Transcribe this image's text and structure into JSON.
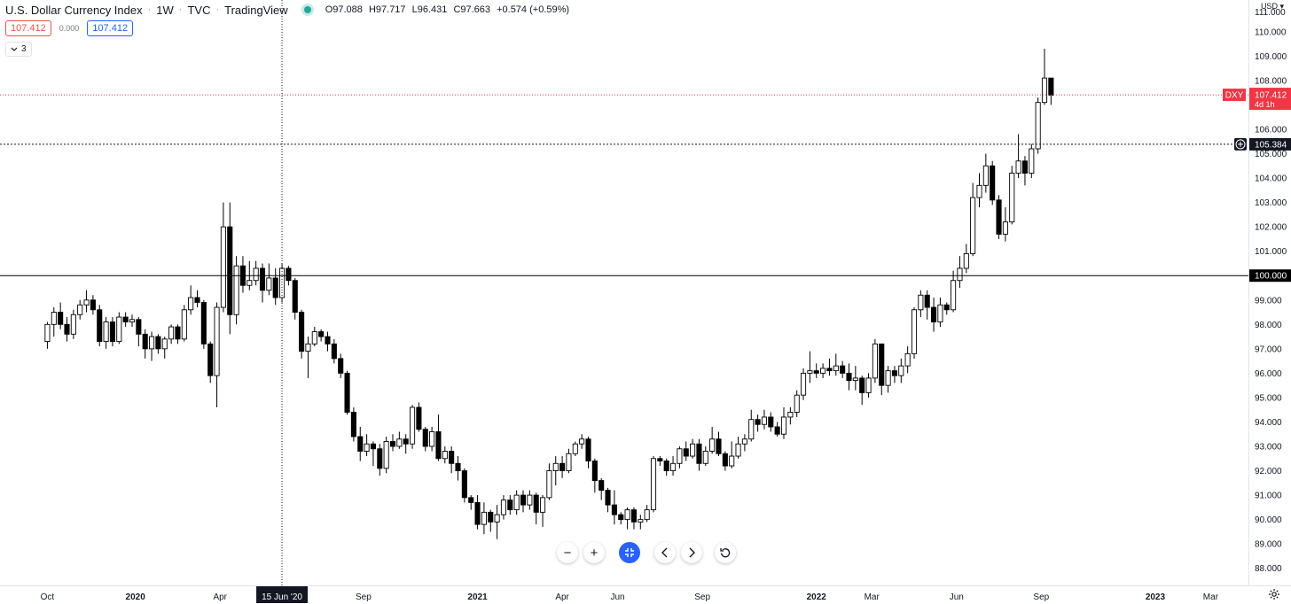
{
  "header": {
    "symbol_name": "U.S. Dollar Currency Index",
    "interval": "1W",
    "exchange": "TVC",
    "source": "TradingView",
    "ohlc": {
      "open": "O97.088",
      "high": "H97.717",
      "low": "L96.431",
      "close": "C97.663",
      "change": "+0.574 (+0.59%)"
    },
    "sell_price": "107.412",
    "spread": "0.000",
    "buy_price": "107.412",
    "indicators_count": "3"
  },
  "price_axis": {
    "currency": "USD",
    "top_label": "111.000"
  },
  "crosshair": {
    "date_label": "15 Jun '20",
    "price_label": "105.384",
    "price": 105.384
  },
  "last_price": {
    "symbol": "DXY",
    "price": "107.412",
    "countdown": "4d 1h",
    "value": 107.412
  },
  "horizontal_line": {
    "label": "100.000",
    "value": 100.0
  },
  "toolbar": {
    "zoom_out": "−",
    "zoom_in": "+"
  },
  "colors": {
    "up_body": "#ffffff",
    "down_body": "#000000",
    "wick": "#000000",
    "last_price": "#f23645",
    "crosshair": "#131722",
    "accent": "#2962ff"
  },
  "chart_data": {
    "type": "candlestick",
    "title": "U.S. Dollar Currency Index",
    "interval": "1W",
    "ylim": [
      87.3,
      111.3
    ],
    "y_ticks": [
      "110.000",
      "109.000",
      "108.000",
      "107.000",
      "106.000",
      "105.000",
      "104.000",
      "103.000",
      "102.000",
      "101.000",
      "99.000",
      "98.000",
      "97.000",
      "96.000",
      "95.000",
      "94.000",
      "93.000",
      "92.000",
      "91.000",
      "90.000",
      "89.000",
      "88.000"
    ],
    "y_tick_values": [
      110,
      109,
      108,
      107,
      106,
      105,
      104,
      103,
      102,
      101,
      99,
      98,
      97,
      96,
      95,
      94,
      93,
      92,
      91,
      90,
      89,
      88
    ],
    "x_ticks": [
      {
        "label": "Oct",
        "bar": 0,
        "bold": false
      },
      {
        "label": "2020",
        "bar": 13.5,
        "bold": true
      },
      {
        "label": "Apr",
        "bar": 26.5,
        "bold": false
      },
      {
        "label": "Sep",
        "bar": 48.5,
        "bold": false
      },
      {
        "label": "2021",
        "bar": 66,
        "bold": true
      },
      {
        "label": "Apr",
        "bar": 79,
        "bold": false
      },
      {
        "label": "Jun",
        "bar": 87.5,
        "bold": false
      },
      {
        "label": "Sep",
        "bar": 100.5,
        "bold": false
      },
      {
        "label": "2022",
        "bar": 118,
        "bold": true
      },
      {
        "label": "Mar",
        "bar": 126.5,
        "bold": false
      },
      {
        "label": "Jun",
        "bar": 139.5,
        "bold": false
      },
      {
        "label": "Sep",
        "bar": 152.5,
        "bold": false
      },
      {
        "label": "2023",
        "bar": 170,
        "bold": true
      },
      {
        "label": "Mar",
        "bar": 178.5,
        "bold": false
      }
    ],
    "start_bar": -7,
    "crosshair_bar": 36,
    "candles": [
      [
        97.3,
        98.0,
        97.0,
        98.1
      ],
      [
        98.0,
        98.5,
        97.5,
        98.7
      ],
      [
        98.5,
        98.0,
        97.8,
        98.9
      ],
      [
        98.0,
        97.6,
        97.3,
        98.3
      ],
      [
        97.6,
        98.4,
        97.4,
        98.6
      ],
      [
        98.4,
        98.8,
        98.2,
        99.0
      ],
      [
        98.8,
        99.0,
        98.5,
        99.4
      ],
      [
        99.0,
        98.6,
        98.4,
        99.2
      ],
      [
        98.6,
        97.3,
        97.1,
        98.8
      ],
      [
        97.3,
        98.1,
        97.0,
        98.3
      ],
      [
        98.1,
        97.3,
        97.1,
        98.3
      ],
      [
        97.3,
        98.3,
        97.2,
        98.5
      ],
      [
        98.3,
        98.1,
        97.9,
        98.5
      ],
      [
        98.1,
        98.2,
        97.9,
        98.4
      ],
      [
        98.2,
        97.6,
        97.1,
        98.3
      ],
      [
        97.6,
        97.0,
        96.6,
        97.8
      ],
      [
        97.0,
        97.5,
        96.5,
        97.7
      ],
      [
        97.5,
        97.0,
        96.8,
        97.6
      ],
      [
        97.0,
        97.4,
        96.6,
        97.5
      ],
      [
        97.4,
        97.9,
        97.2,
        98.0
      ],
      [
        97.9,
        97.4,
        97.2,
        98.0
      ],
      [
        97.4,
        98.6,
        97.3,
        98.8
      ],
      [
        98.6,
        99.1,
        98.4,
        99.6
      ],
      [
        99.1,
        98.9,
        98.7,
        99.4
      ],
      [
        98.9,
        97.2,
        97.0,
        99.0
      ],
      [
        97.2,
        95.9,
        95.6,
        97.3
      ],
      [
        95.9,
        98.7,
        94.6,
        98.9
      ],
      [
        98.7,
        102.0,
        98.5,
        103.0
      ],
      [
        102.0,
        98.4,
        97.6,
        103.0
      ],
      [
        98.4,
        100.4,
        98.0,
        100.8
      ],
      [
        100.4,
        99.6,
        99.3,
        100.8
      ],
      [
        99.6,
        99.8,
        99.4,
        100.6
      ],
      [
        99.8,
        100.3,
        99.6,
        100.6
      ],
      [
        100.3,
        99.4,
        98.9,
        100.5
      ],
      [
        99.4,
        99.9,
        99.2,
        100.5
      ],
      [
        99.9,
        99.1,
        98.8,
        100.3
      ],
      [
        99.1,
        100.3,
        98.9,
        100.5
      ],
      [
        100.3,
        99.8,
        99.6,
        100.4
      ],
      [
        99.8,
        98.5,
        98.2,
        99.9
      ],
      [
        98.5,
        96.9,
        96.6,
        98.6
      ],
      [
        96.9,
        97.2,
        95.8,
        97.5
      ],
      [
        97.2,
        97.7,
        97.1,
        97.9
      ],
      [
        97.7,
        97.5,
        97.3,
        97.8
      ],
      [
        97.5,
        97.2,
        96.9,
        97.7
      ],
      [
        97.2,
        96.6,
        96.4,
        97.4
      ],
      [
        96.6,
        96.0,
        95.8,
        96.8
      ],
      [
        96.0,
        94.4,
        94.3,
        96.1
      ],
      [
        94.4,
        93.4,
        93.2,
        94.6
      ],
      [
        93.4,
        92.8,
        92.4,
        93.8
      ],
      [
        92.8,
        93.1,
        92.6,
        93.5
      ],
      [
        93.1,
        92.9,
        92.2,
        93.2
      ],
      [
        92.9,
        92.1,
        91.8,
        93.1
      ],
      [
        92.1,
        93.2,
        91.9,
        93.4
      ],
      [
        93.2,
        93.0,
        92.8,
        93.5
      ],
      [
        93.0,
        93.3,
        92.9,
        93.6
      ],
      [
        93.3,
        93.1,
        92.7,
        93.5
      ],
      [
        93.1,
        94.6,
        92.9,
        94.7
      ],
      [
        94.6,
        93.7,
        93.6,
        94.8
      ],
      [
        93.7,
        93.0,
        92.8,
        93.8
      ],
      [
        93.0,
        93.6,
        92.8,
        93.8
      ],
      [
        93.6,
        92.5,
        92.4,
        94.3
      ],
      [
        92.5,
        92.8,
        92.3,
        93.0
      ],
      [
        92.8,
        92.3,
        91.9,
        93.0
      ],
      [
        92.3,
        92.0,
        91.6,
        92.6
      ],
      [
        92.0,
        90.9,
        90.7,
        92.1
      ],
      [
        90.9,
        90.7,
        90.4,
        91.0
      ],
      [
        90.7,
        89.8,
        89.6,
        91.0
      ],
      [
        89.8,
        90.3,
        89.4,
        90.7
      ],
      [
        90.3,
        89.9,
        89.5,
        90.4
      ],
      [
        89.9,
        90.2,
        89.2,
        90.6
      ],
      [
        90.2,
        90.8,
        90.0,
        91.0
      ],
      [
        90.8,
        90.4,
        90.2,
        91.0
      ],
      [
        90.4,
        91.0,
        90.2,
        91.2
      ],
      [
        91.0,
        90.6,
        90.3,
        91.2
      ],
      [
        90.6,
        91.0,
        90.4,
        91.2
      ],
      [
        91.0,
        90.3,
        89.8,
        91.1
      ],
      [
        90.3,
        90.9,
        89.7,
        91.0
      ],
      [
        90.9,
        92.0,
        90.8,
        92.3
      ],
      [
        92.0,
        92.3,
        91.4,
        92.6
      ],
      [
        92.3,
        92.0,
        91.7,
        92.6
      ],
      [
        92.0,
        92.7,
        91.9,
        92.9
      ],
      [
        92.7,
        93.1,
        92.6,
        93.2
      ],
      [
        93.1,
        93.3,
        92.9,
        93.5
      ],
      [
        93.3,
        92.4,
        92.1,
        93.4
      ],
      [
        92.4,
        91.6,
        91.1,
        92.5
      ],
      [
        91.6,
        91.2,
        90.8,
        91.7
      ],
      [
        91.2,
        90.6,
        90.3,
        91.3
      ],
      [
        90.6,
        90.2,
        89.8,
        91.2
      ],
      [
        90.2,
        90.0,
        89.8,
        90.3
      ],
      [
        90.0,
        90.4,
        89.6,
        90.5
      ],
      [
        90.4,
        89.9,
        89.6,
        90.5
      ],
      [
        89.9,
        90.0,
        89.6,
        90.2
      ],
      [
        90.0,
        90.4,
        89.9,
        90.6
      ],
      [
        90.4,
        92.5,
        90.3,
        92.6
      ],
      [
        92.5,
        92.4,
        92.2,
        92.6
      ],
      [
        92.4,
        92.0,
        91.8,
        92.5
      ],
      [
        92.0,
        92.3,
        91.8,
        92.6
      ],
      [
        92.3,
        92.9,
        92.1,
        93.0
      ],
      [
        92.9,
        92.6,
        92.4,
        93.2
      ],
      [
        92.6,
        93.1,
        92.5,
        93.3
      ],
      [
        93.1,
        92.3,
        92.0,
        93.3
      ],
      [
        92.3,
        92.8,
        92.2,
        93.0
      ],
      [
        92.8,
        93.3,
        92.7,
        93.8
      ],
      [
        93.3,
        92.7,
        92.6,
        93.6
      ],
      [
        92.7,
        92.2,
        92.0,
        92.8
      ],
      [
        92.2,
        92.6,
        92.1,
        93.2
      ],
      [
        92.6,
        93.1,
        92.5,
        93.4
      ],
      [
        93.1,
        93.3,
        92.8,
        93.5
      ],
      [
        93.3,
        94.1,
        93.2,
        94.5
      ],
      [
        94.1,
        93.9,
        93.6,
        94.3
      ],
      [
        93.9,
        94.2,
        93.7,
        94.5
      ],
      [
        94.2,
        93.8,
        93.6,
        94.4
      ],
      [
        93.8,
        93.5,
        93.4,
        94.0
      ],
      [
        93.5,
        94.2,
        93.3,
        94.6
      ],
      [
        94.2,
        94.4,
        93.9,
        94.6
      ],
      [
        94.4,
        95.1,
        94.2,
        95.3
      ],
      [
        95.1,
        96.0,
        94.9,
        96.2
      ],
      [
        96.0,
        96.1,
        95.6,
        96.9
      ],
      [
        96.1,
        96.0,
        95.8,
        96.4
      ],
      [
        96.0,
        96.2,
        95.8,
        96.4
      ],
      [
        96.2,
        96.1,
        95.9,
        96.6
      ],
      [
        96.1,
        96.3,
        95.9,
        96.8
      ],
      [
        96.3,
        96.0,
        95.8,
        96.5
      ],
      [
        96.0,
        95.7,
        95.3,
        96.4
      ],
      [
        95.7,
        95.8,
        95.3,
        96.3
      ],
      [
        95.8,
        95.2,
        94.7,
        95.9
      ],
      [
        95.2,
        95.8,
        95.0,
        96.0
      ],
      [
        95.8,
        97.2,
        95.6,
        97.4
      ],
      [
        97.2,
        95.5,
        95.1,
        97.2
      ],
      [
        95.5,
        96.1,
        95.2,
        96.3
      ],
      [
        96.1,
        95.9,
        95.6,
        96.3
      ],
      [
        95.9,
        96.3,
        95.6,
        96.6
      ],
      [
        96.3,
        96.8,
        96.0,
        97.1
      ],
      [
        96.8,
        98.6,
        96.6,
        98.7
      ],
      [
        98.6,
        99.2,
        98.3,
        99.4
      ],
      [
        99.2,
        98.7,
        98.2,
        99.4
      ],
      [
        98.7,
        98.1,
        97.7,
        99.1
      ],
      [
        98.1,
        98.8,
        97.9,
        99.1
      ],
      [
        98.8,
        98.6,
        98.4,
        98.9
      ],
      [
        98.6,
        99.8,
        98.5,
        100.2
      ],
      [
        99.8,
        100.3,
        99.5,
        100.8
      ],
      [
        100.3,
        100.9,
        100.1,
        101.3
      ],
      [
        100.9,
        103.2,
        100.8,
        103.8
      ],
      [
        103.2,
        103.7,
        102.8,
        104.2
      ],
      [
        103.7,
        104.5,
        103.4,
        105.0
      ],
      [
        104.5,
        103.1,
        102.9,
        104.7
      ],
      [
        103.1,
        101.7,
        101.5,
        103.3
      ],
      [
        101.7,
        102.2,
        101.4,
        102.8
      ],
      [
        102.2,
        104.2,
        102.1,
        104.5
      ],
      [
        104.2,
        104.7,
        104.0,
        105.8
      ],
      [
        104.7,
        104.2,
        103.7,
        104.9
      ],
      [
        104.2,
        105.2,
        104.0,
        105.4
      ],
      [
        105.2,
        107.1,
        105.0,
        107.3
      ],
      [
        107.1,
        108.1,
        107.0,
        109.3
      ],
      [
        108.1,
        107.4,
        107.0,
        108.1
      ]
    ]
  }
}
